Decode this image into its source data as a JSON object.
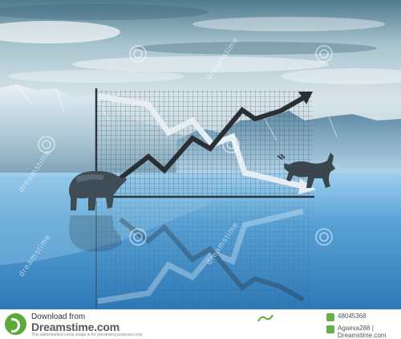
{
  "footer": {
    "download_label": "Download from",
    "brand": "Dreamstime.com",
    "fine_print": "This watermarked comp image is for previewing purposes only.",
    "image_id": "48045368",
    "credit": "Agaeva288 | Dreamstime.com"
  },
  "watermark": {
    "text": "dreamstime"
  },
  "colors": {
    "sky": "#8fb6c6",
    "floor": "#4a90c8",
    "brand_green": "#5cab3a"
  }
}
